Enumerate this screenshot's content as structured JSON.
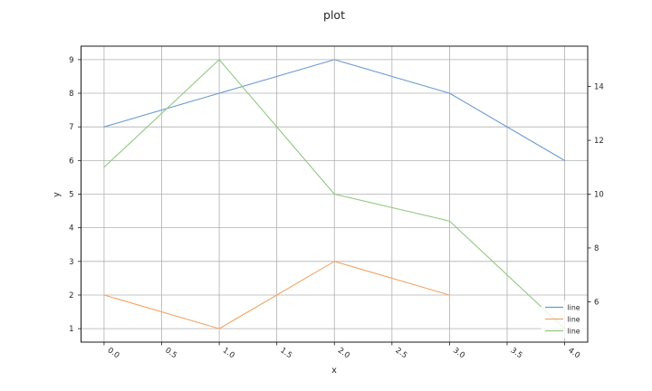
{
  "chart_data": {
    "type": "line",
    "title": "plot",
    "xlabel": "x",
    "ylabel": "y",
    "grid": true,
    "x_axis": {
      "tick_values": [
        0,
        0.5,
        1,
        1.5,
        2,
        2.5,
        3,
        3.5,
        4
      ],
      "tick_labels": [
        "0.0",
        "0.5",
        "1.0",
        "1.5",
        "2.0",
        "2.5",
        "3.0",
        "3.5",
        "4.0"
      ],
      "lim": [
        -0.2,
        4.2
      ],
      "tick_label_rotation_deg": 35
    },
    "y_axis_left": {
      "tick_values": [
        1,
        2,
        3,
        4,
        5,
        6,
        7,
        8,
        9
      ],
      "tick_labels": [
        "1",
        "2",
        "3",
        "4",
        "5",
        "6",
        "7",
        "8",
        "9"
      ],
      "lim": [
        0.6,
        9.4
      ]
    },
    "y_axis_right": {
      "tick_values": [
        6,
        8,
        10,
        12,
        14
      ],
      "tick_labels": [
        "6",
        "8",
        "10",
        "12",
        "14"
      ],
      "lim": [
        4.5,
        15.5
      ]
    },
    "series": [
      {
        "name": "line",
        "axis": "left",
        "color": "#6b9ad1",
        "x": [
          0,
          1,
          2,
          3,
          4
        ],
        "y": [
          7,
          8,
          9,
          8,
          6
        ]
      },
      {
        "name": "line",
        "axis": "left",
        "color": "#f2a express66",
        "x": [
          0,
          1,
          2,
          3
        ],
        "y": [
          2,
          1,
          3,
          2
        ]
      },
      {
        "name": "line",
        "axis": "right",
        "color": "#8fc97f",
        "x": [
          0,
          1,
          2,
          3,
          4
        ],
        "y": [
          11,
          15,
          10,
          9,
          5
        ]
      }
    ],
    "legend": {
      "position": "lower right",
      "entries": [
        "line",
        "line",
        "line"
      ]
    },
    "colors": {
      "grid": "#b0b0b0",
      "spine": "#1a1a1a",
      "text": "#262626",
      "legend_bg": "rgba(255,255,255,0.8)"
    }
  }
}
